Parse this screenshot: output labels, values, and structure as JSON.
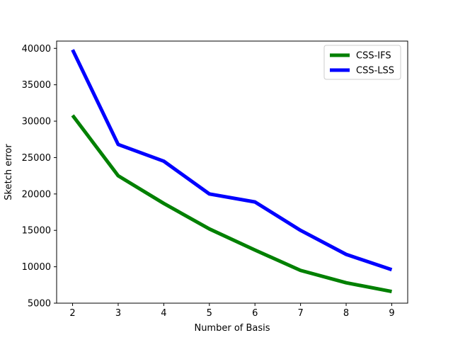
{
  "chart_data": {
    "type": "line",
    "x": [
      2,
      3,
      4,
      5,
      6,
      7,
      8,
      9
    ],
    "series": [
      {
        "name": "CSS-IFS",
        "color": "#008000",
        "values": [
          30800,
          22500,
          18700,
          15200,
          12300,
          9500,
          7800,
          6600
        ]
      },
      {
        "name": "CSS-LSS",
        "color": "#0000ff",
        "values": [
          39800,
          26800,
          24500,
          20000,
          18900,
          15000,
          11700,
          9600
        ]
      }
    ],
    "title": "",
    "xlabel": "Number of Basis",
    "ylabel": "Sketch error",
    "xlim": [
      1.65,
      9.35
    ],
    "ylim": [
      5000,
      41000
    ],
    "xticks": [
      2,
      3,
      4,
      5,
      6,
      7,
      8,
      9
    ],
    "yticks": [
      5000,
      10000,
      15000,
      20000,
      25000,
      30000,
      35000,
      40000
    ],
    "grid": false,
    "legend_position": "upper right"
  }
}
